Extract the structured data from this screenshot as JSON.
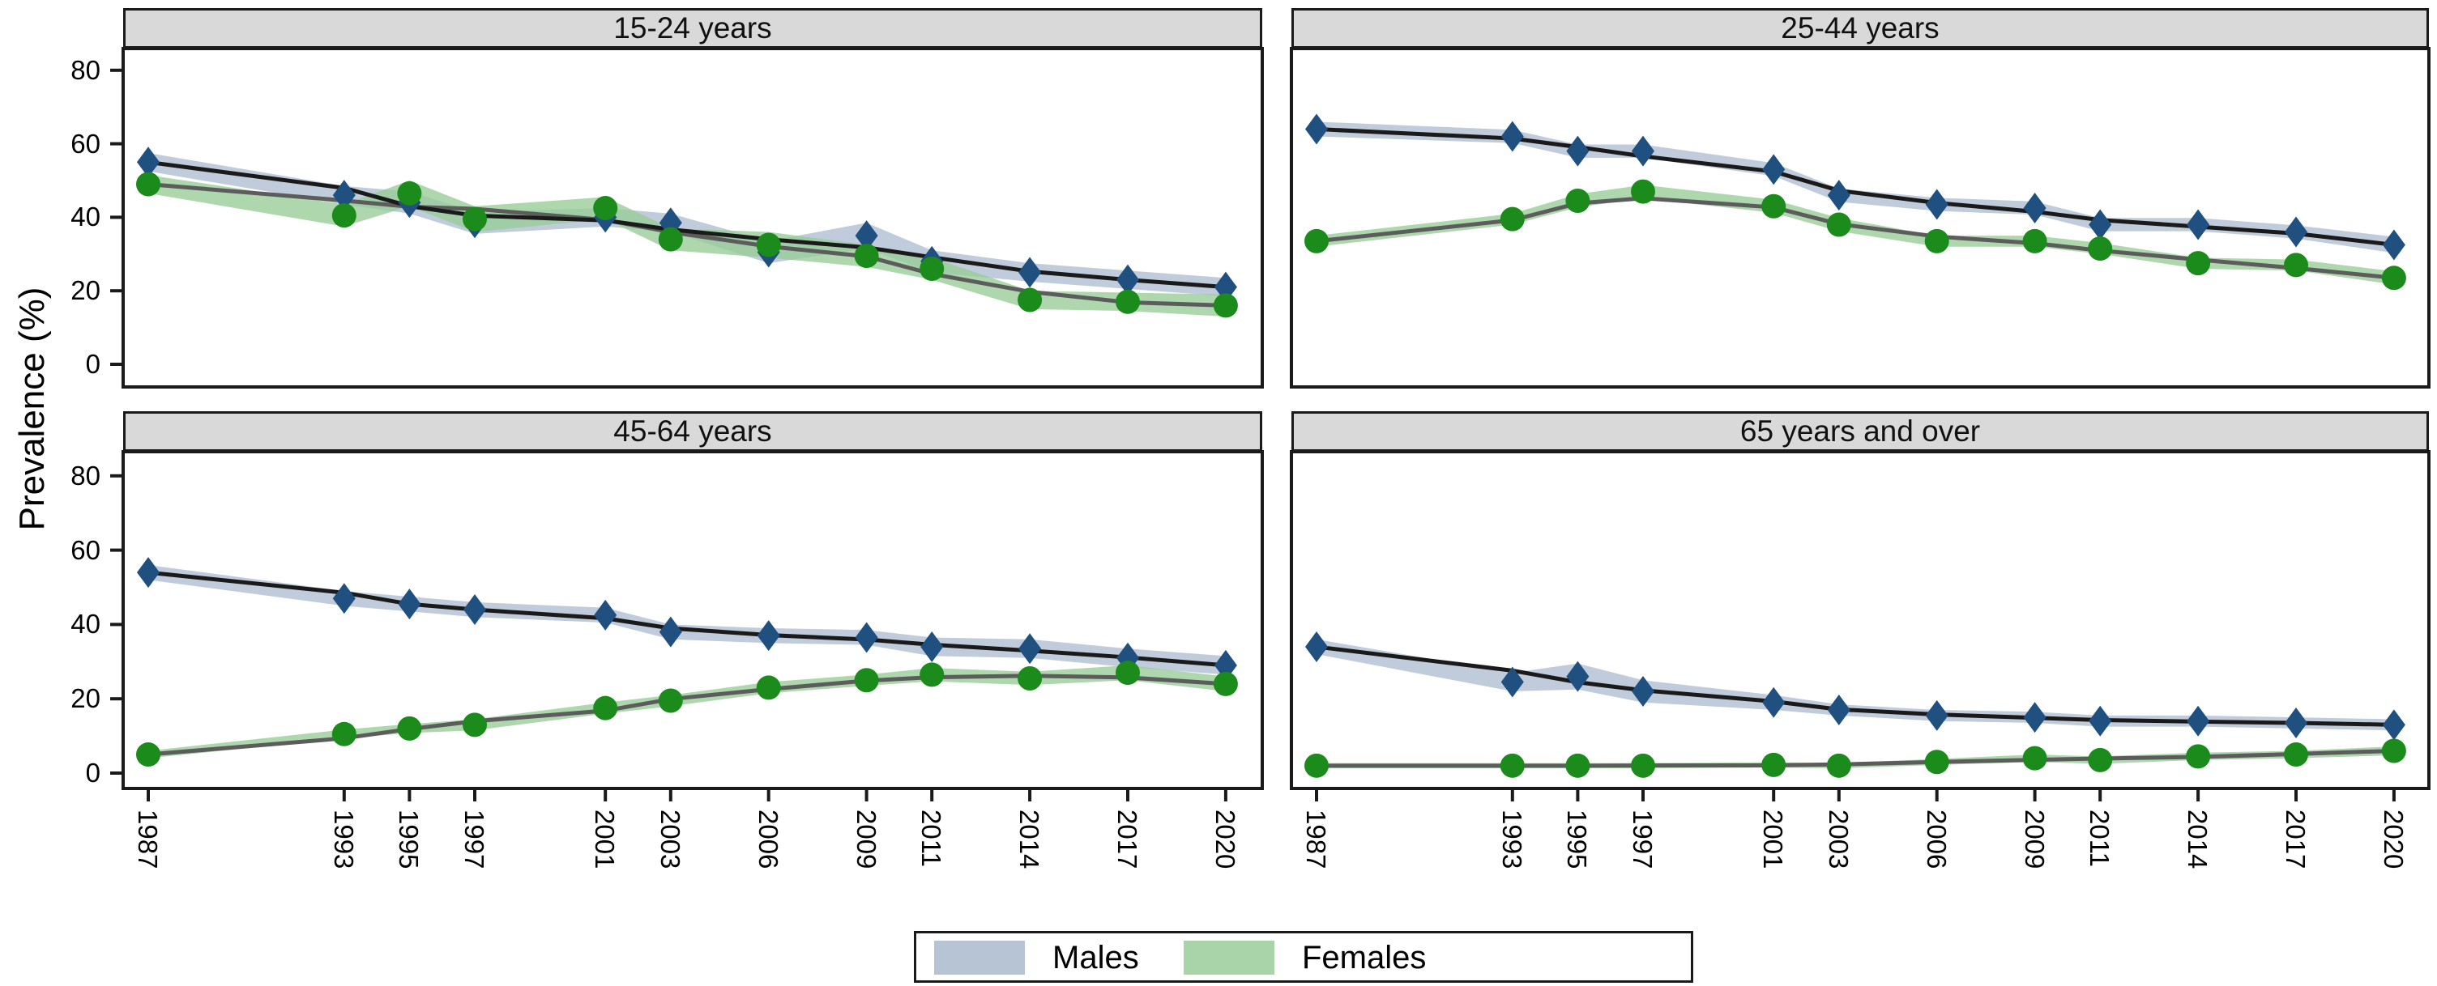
{
  "ylabel": "Prevalence (%)",
  "y_ticks": [
    0,
    20,
    40,
    60,
    80
  ],
  "years": [
    1987,
    1993,
    1995,
    1997,
    2001,
    2003,
    2006,
    2009,
    2011,
    2014,
    2017,
    2020
  ],
  "legend": {
    "items": [
      {
        "label": "Males",
        "swatch_color": "#b7c4d3"
      },
      {
        "label": "Females",
        "swatch_color": "#a9d3a9"
      }
    ]
  },
  "colors": {
    "male_marker": "#1f5080",
    "female_marker": "#1b8c1b",
    "male_trend": "#1a1a1a",
    "female_trend": "#5c5c5c",
    "male_band": "#aebdd1",
    "female_band": "#97cc97",
    "header_bg": "#d9d9d9",
    "border": "#1a1a1a"
  },
  "chart_data": [
    {
      "type": "line",
      "title": "15-24 years",
      "ylabel": "Prevalence (%)",
      "ylim": [
        0,
        85
      ],
      "x": [
        1987,
        1993,
        1995,
        1997,
        2001,
        2003,
        2006,
        2009,
        2011,
        2014,
        2017,
        2020
      ],
      "series": [
        {
          "name": "Males",
          "marker": "diamond",
          "values": [
            55,
            46,
            44,
            38.5,
            40,
            38.5,
            30.5,
            35,
            28,
            25,
            23,
            21
          ],
          "ci_halfwidth": [
            2.5,
            2.5,
            3,
            3,
            2.5,
            2.5,
            3,
            3.5,
            3,
            2.5,
            2.5,
            2.5
          ]
        },
        {
          "name": "Females",
          "marker": "circle",
          "values": [
            49,
            40.5,
            46.5,
            39.5,
            42.5,
            34,
            32.5,
            29.5,
            26,
            17.5,
            17,
            16
          ],
          "ci_halfwidth": [
            2.5,
            3,
            3.5,
            3.5,
            3,
            3,
            3.5,
            3,
            3,
            2.5,
            2.5,
            3
          ]
        }
      ]
    },
    {
      "type": "line",
      "title": "25-44 years",
      "ylabel": "Prevalence (%)",
      "ylim": [
        0,
        85
      ],
      "x": [
        1987,
        1993,
        1995,
        1997,
        2001,
        2003,
        2006,
        2009,
        2011,
        2014,
        2017,
        2020
      ],
      "series": [
        {
          "name": "Males",
          "marker": "diamond",
          "values": [
            64,
            62,
            58,
            58,
            53,
            46,
            43.5,
            42.5,
            38,
            38,
            36,
            32.5
          ],
          "ci_halfwidth": [
            2,
            1.8,
            1.8,
            1.8,
            1.8,
            1.8,
            1.8,
            1.8,
            1.8,
            1.8,
            1.8,
            2.2
          ]
        },
        {
          "name": "Females",
          "marker": "circle",
          "values": [
            33.5,
            39.5,
            44.5,
            47,
            43,
            38,
            33.5,
            33.5,
            31.5,
            27.5,
            27,
            23.5
          ],
          "ci_halfwidth": [
            1.5,
            1.5,
            1.8,
            1.8,
            1.8,
            1.8,
            1.5,
            1.5,
            1.5,
            1.5,
            1.5,
            1.8
          ]
        }
      ]
    },
    {
      "type": "line",
      "title": "45-64 years",
      "ylabel": "Prevalence (%)",
      "ylim": [
        0,
        85
      ],
      "x": [
        1987,
        1993,
        1995,
        1997,
        2001,
        2003,
        2006,
        2009,
        2011,
        2014,
        2017,
        2020
      ],
      "series": [
        {
          "name": "Males",
          "marker": "diamond",
          "values": [
            54,
            47,
            45.5,
            44,
            42.5,
            38,
            37,
            36.5,
            34,
            33.5,
            31,
            29
          ],
          "ci_halfwidth": [
            2,
            2,
            2,
            2,
            2,
            2,
            2,
            2,
            2.5,
            2.5,
            2.5,
            2.5
          ]
        },
        {
          "name": "Females",
          "marker": "circle",
          "values": [
            5,
            10.5,
            12,
            13,
            17.5,
            19.5,
            23,
            25,
            26.5,
            25.5,
            27,
            24
          ],
          "ci_halfwidth": [
            1,
            1.2,
            1.2,
            1.5,
            1.5,
            1.5,
            1.5,
            1.5,
            1.8,
            1.8,
            2,
            2
          ]
        }
      ]
    },
    {
      "type": "line",
      "title": "65 years and over",
      "ylabel": "Prevalence (%)",
      "ylim": [
        0,
        85
      ],
      "x": [
        1987,
        1993,
        1995,
        1997,
        2001,
        2003,
        2006,
        2009,
        2011,
        2014,
        2017,
        2020
      ],
      "series": [
        {
          "name": "Males",
          "marker": "diamond",
          "values": [
            34,
            24.5,
            26,
            22,
            19,
            17,
            15.5,
            15,
            14,
            14,
            13.5,
            13
          ],
          "ci_halfwidth": [
            2,
            2.5,
            3.5,
            3,
            2,
            1.5,
            1.5,
            1.5,
            1.5,
            1.5,
            1.5,
            1.5
          ]
        },
        {
          "name": "Females",
          "marker": "circle",
          "values": [
            2,
            2,
            2,
            2,
            2.2,
            2,
            3,
            4,
            3.5,
            4.5,
            5,
            6
          ],
          "ci_halfwidth": [
            0.7,
            0.7,
            0.7,
            0.7,
            0.7,
            0.7,
            0.8,
            1,
            1,
            1,
            1,
            1.2
          ]
        }
      ]
    }
  ]
}
